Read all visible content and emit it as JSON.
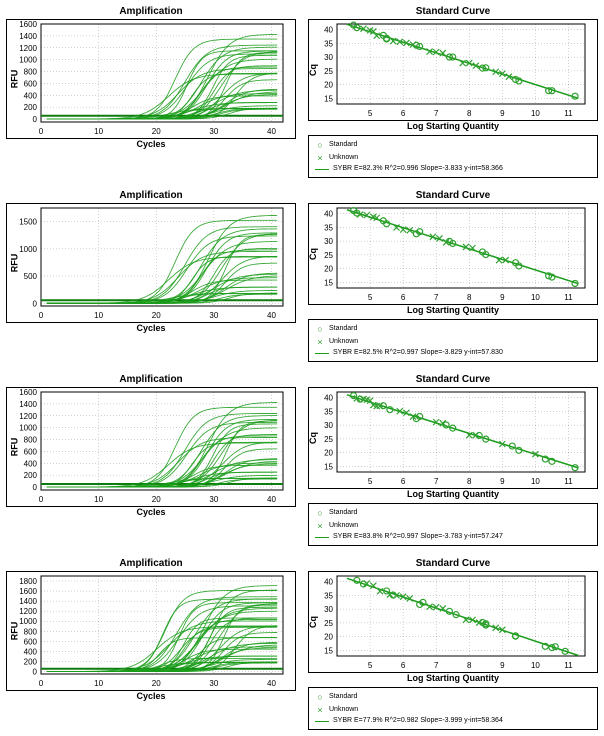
{
  "colors": {
    "line": "#1a9c1a",
    "line_dark": "#0e7c0e",
    "marker": "#2ea02e",
    "bg": "#ffffff",
    "axis": "#000000",
    "grid": "#000000"
  },
  "rows": [
    {
      "amp": {
        "title": "Amplification",
        "xlabel": "Cycles",
        "ylabel": "RFU",
        "xlim": [
          0,
          42
        ],
        "xticks": [
          0,
          10,
          20,
          30,
          40
        ],
        "ylim": [
          -50,
          1600
        ],
        "yticks": [
          0,
          200,
          400,
          600,
          800,
          1000,
          1200,
          1400,
          1600
        ],
        "threshold_y": 55,
        "n_curves": 34,
        "plateau_range": [
          150,
          1500
        ],
        "midpoint_range": [
          22,
          34
        ]
      },
      "std": {
        "title": "Standard Curve",
        "xlabel": "Log Starting Quantity",
        "ylabel": "Cq",
        "xlim": [
          4,
          11.5
        ],
        "xticks": [
          5,
          6,
          7,
          8,
          9,
          10,
          11
        ],
        "ylim": [
          13,
          42
        ],
        "yticks": [
          15,
          20,
          25,
          30,
          35,
          40
        ],
        "fit": {
          "slope": -3.833,
          "intercept": 58.366
        },
        "standards_x": [
          4.5,
          4.6,
          5.4,
          5.5,
          5.5,
          6.4,
          6.5,
          7.4,
          7.5,
          8.4,
          8.5,
          9.4,
          9.5,
          10.4,
          10.5,
          11.2
        ],
        "unknowns_x": [
          4.8,
          5.0,
          5.1,
          5.2,
          5.7,
          5.9,
          6.1,
          6.3,
          6.8,
          7.0,
          7.2,
          7.8,
          8.0,
          8.2,
          8.8,
          9.0,
          9.2
        ],
        "legend": {
          "standard_label": "Standard",
          "unknown_label": "Unknown",
          "fit_label": "SYBR    E=82.3% R^2=0.996 Slope=-3.833 y-int=58.366"
        }
      }
    },
    {
      "amp": {
        "title": "Amplification",
        "xlabel": "Cycles",
        "ylabel": "RFU",
        "xlim": [
          0,
          42
        ],
        "xticks": [
          0,
          10,
          20,
          30,
          40
        ],
        "ylim": [
          -50,
          1750
        ],
        "yticks": [
          0,
          500,
          1000,
          1500
        ],
        "threshold_y": 55,
        "n_curves": 28,
        "plateau_range": [
          150,
          1700
        ],
        "midpoint_range": [
          22,
          34
        ]
      },
      "std": {
        "title": "Standard Curve",
        "xlabel": "Log Starting Quantity",
        "ylabel": "Cq",
        "xlim": [
          4,
          11.5
        ],
        "xticks": [
          5,
          6,
          7,
          8,
          9,
          10,
          11
        ],
        "ylim": [
          13,
          42
        ],
        "yticks": [
          15,
          20,
          25,
          30,
          35,
          40
        ],
        "fit": {
          "slope": -3.829,
          "intercept": 57.83
        },
        "standards_x": [
          4.5,
          4.6,
          5.4,
          5.5,
          6.4,
          6.5,
          7.4,
          7.5,
          8.4,
          8.5,
          9.4,
          9.5,
          10.4,
          10.5,
          11.2
        ],
        "unknowns_x": [
          4.7,
          4.9,
          5.1,
          5.2,
          5.8,
          6.0,
          6.2,
          6.9,
          7.1,
          7.3,
          7.9,
          8.1,
          8.9,
          9.1
        ],
        "legend": {
          "standard_label": "Standard",
          "unknown_label": "Unknown",
          "fit_label": "SYBR    E=82.5% R^2=0.997 Slope=-3.829 y-int=57.830"
        }
      }
    },
    {
      "amp": {
        "title": "Amplification",
        "xlabel": "Cycles",
        "ylabel": "RFU",
        "xlim": [
          0,
          42
        ],
        "xticks": [
          0,
          10,
          20,
          30,
          40
        ],
        "ylim": [
          -50,
          1600
        ],
        "yticks": [
          0,
          200,
          400,
          600,
          800,
          1000,
          1200,
          1400,
          1600
        ],
        "threshold_y": 50,
        "n_curves": 30,
        "plateau_range": [
          120,
          1500
        ],
        "midpoint_range": [
          22,
          34
        ]
      },
      "std": {
        "title": "Standard Curve",
        "xlabel": "Log Starting Quantity",
        "ylabel": "Cq",
        "xlim": [
          4,
          11.5
        ],
        "xticks": [
          5,
          6,
          7,
          8,
          9,
          10,
          11
        ],
        "ylim": [
          13,
          42
        ],
        "yticks": [
          15,
          20,
          25,
          30,
          35,
          40
        ],
        "fit": {
          "slope": -3.783,
          "intercept": 57.247
        },
        "standards_x": [
          4.5,
          4.7,
          5.4,
          5.6,
          6.4,
          6.5,
          7.3,
          7.5,
          8.3,
          8.5,
          9.3,
          9.5,
          10.3,
          10.5,
          11.2
        ],
        "unknowns_x": [
          4.6,
          4.8,
          4.9,
          5.0,
          5.1,
          5.2,
          5.3,
          5.9,
          6.1,
          6.3,
          7.0,
          7.2,
          8.0,
          8.2,
          9.0,
          10.0
        ],
        "legend": {
          "standard_label": "Standard",
          "unknown_label": "Unknown",
          "fit_label": "SYBR    E=83.8% R^2=0.997 Slope=-3.783 y-int=57.247"
        }
      }
    },
    {
      "amp": {
        "title": "Amplification",
        "xlabel": "Cycles",
        "ylabel": "RFU",
        "xlim": [
          0,
          42
        ],
        "xticks": [
          0,
          10,
          20,
          30,
          40
        ],
        "ylim": [
          -50,
          1900
        ],
        "yticks": [
          0,
          200,
          400,
          600,
          800,
          1000,
          1200,
          1400,
          1600,
          1800
        ],
        "threshold_y": 55,
        "n_curves": 42,
        "plateau_range": [
          150,
          1800
        ],
        "midpoint_range": [
          20,
          34
        ]
      },
      "std": {
        "title": "Standard Curve",
        "xlabel": "Log Starting Quantity",
        "ylabel": "Cq",
        "xlim": [
          4,
          11.5
        ],
        "xticks": [
          5,
          6,
          7,
          8,
          9,
          10,
          11
        ],
        "ylim": [
          13,
          42
        ],
        "yticks": [
          15,
          20,
          25,
          30,
          35,
          40
        ],
        "fit": {
          "slope": -3.999,
          "intercept": 58.364
        },
        "standards_x": [
          4.6,
          4.8,
          5.5,
          5.7,
          6.5,
          6.6,
          7.4,
          7.6,
          8.4,
          8.5,
          8.5,
          9.4,
          9.4,
          10.3,
          10.5,
          10.6,
          10.9
        ],
        "unknowns_x": [
          4.9,
          5.1,
          5.3,
          5.6,
          5.8,
          6.0,
          6.2,
          6.8,
          7.0,
          7.2,
          7.9,
          8.1,
          8.3,
          8.8,
          9.0
        ],
        "legend": {
          "standard_label": "Standard",
          "unknown_label": "Unknown",
          "fit_label": "SYBR    E=77.9% R^2=0.982 Slope=-3.999 y-int=58.364"
        }
      }
    }
  ]
}
